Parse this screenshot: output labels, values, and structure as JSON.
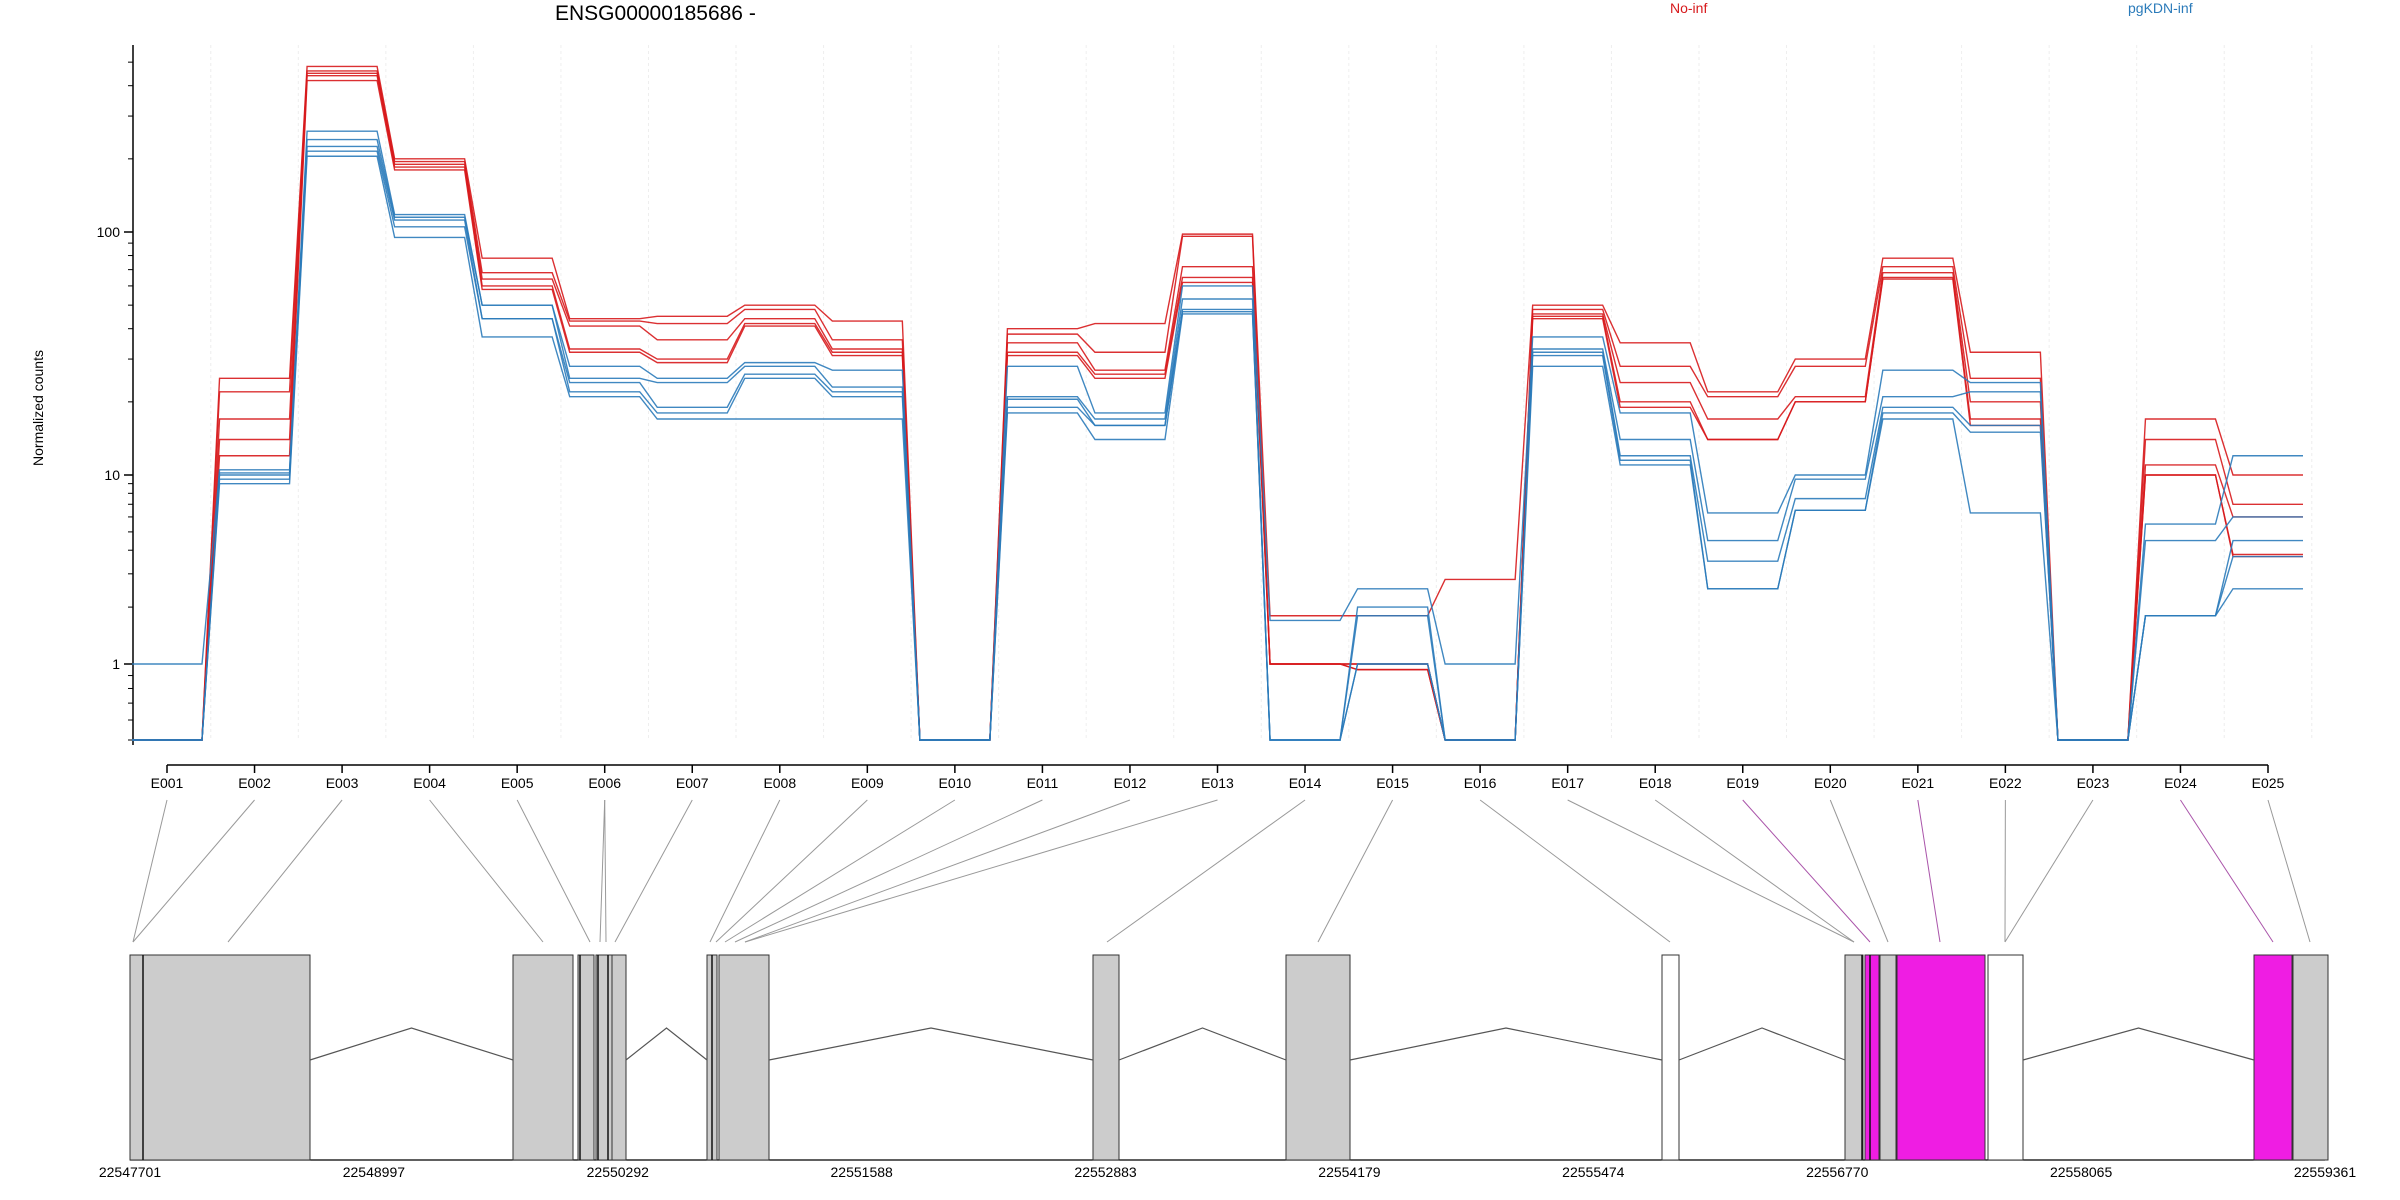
{
  "chart_data": {
    "type": "line",
    "title": "ENSG00000185686 -",
    "ylabel": "Normalized counts",
    "yscale": "log",
    "yticks": [
      "1",
      "10",
      "100"
    ],
    "legend": [
      {
        "name": "No-inf",
        "color": "#d7191c"
      },
      {
        "name": "pgKDN-inf",
        "color": "#2b7bba"
      }
    ],
    "categories": [
      "E001",
      "E002",
      "E003",
      "E004",
      "E005",
      "E006",
      "E007",
      "E008",
      "E009",
      "E010",
      "E011",
      "E012",
      "E013",
      "E014",
      "E015",
      "E016",
      "E017",
      "E018",
      "E019",
      "E020",
      "E021",
      "E022",
      "E023",
      "E024",
      "E025"
    ],
    "series": [
      {
        "group": "No-inf",
        "values": [
          0.5,
          25,
          480,
          200,
          78,
          44,
          45,
          50,
          43,
          0.5,
          40,
          42,
          98,
          1.8,
          1.8,
          2.8,
          50,
          35,
          22,
          30,
          78,
          32,
          0.5,
          17,
          10
        ]
      },
      {
        "group": "No-inf",
        "values": [
          0.5,
          22,
          460,
          195,
          68,
          43,
          42,
          48,
          36,
          0.5,
          38,
          32,
          96,
          1.0,
          1.0,
          0.5,
          48,
          28,
          21,
          28,
          72,
          25,
          0.5,
          14,
          7
        ]
      },
      {
        "group": "No-inf",
        "values": [
          0.5,
          17,
          450,
          190,
          64,
          41,
          36,
          44,
          33,
          0.5,
          35,
          27,
          72,
          1.0,
          1.0,
          0.5,
          46,
          24,
          17,
          21,
          68,
          20,
          0.5,
          11,
          6
        ]
      },
      {
        "group": "No-inf",
        "values": [
          0.5,
          14,
          440,
          185,
          60,
          33,
          30,
          42,
          32,
          0.5,
          32,
          26,
          65,
          1.0,
          0.95,
          0.5,
          45,
          20,
          14,
          20,
          65,
          17,
          0.5,
          10,
          3.8
        ]
      },
      {
        "group": "No-inf",
        "values": [
          0.5,
          12,
          420,
          180,
          58,
          32,
          29,
          41,
          31,
          0.5,
          31,
          25,
          62,
          1.0,
          0.95,
          0.5,
          44,
          19,
          14,
          20,
          64,
          16,
          0.5,
          10,
          3.7
        ]
      },
      {
        "group": "pgKDN-inf",
        "values": [
          1.0,
          10.5,
          260,
          118,
          50,
          28,
          25,
          29,
          27,
          0.5,
          28,
          18,
          60,
          1.7,
          2.5,
          1.0,
          37,
          18,
          6.3,
          10,
          27,
          24,
          0.5,
          5.5,
          12
        ]
      },
      {
        "group": "pgKDN-inf",
        "values": [
          0.5,
          10.2,
          240,
          115,
          50,
          25,
          24,
          28,
          23,
          0.5,
          21,
          17,
          53,
          0.5,
          2.0,
          0.5,
          33,
          14,
          4.5,
          9.5,
          21,
          22,
          0.5,
          4.5,
          6
        ]
      },
      {
        "group": "pgKDN-inf",
        "values": [
          0.5,
          10.0,
          225,
          112,
          44,
          24,
          19,
          26,
          22,
          0.5,
          20.5,
          16,
          48,
          0.5,
          1.8,
          0.5,
          32,
          12,
          3.5,
          7.5,
          19,
          16,
          0.5,
          1.8,
          4.5
        ]
      },
      {
        "group": "pgKDN-inf",
        "values": [
          0.5,
          9.5,
          215,
          105,
          44,
          22,
          18,
          25,
          21,
          0.5,
          19,
          16,
          47,
          0.5,
          1.0,
          0.5,
          31,
          11.5,
          2.5,
          6.5,
          18,
          15,
          0.5,
          1.8,
          3.7
        ]
      },
      {
        "group": "pgKDN-inf",
        "values": [
          0.5,
          9.0,
          205,
          95,
          37,
          21,
          17,
          17,
          17,
          0.5,
          18,
          14,
          46,
          0.5,
          1.0,
          0.5,
          28,
          11,
          2.5,
          6.5,
          17,
          6.3,
          0.5,
          1.8,
          2.5
        ]
      }
    ]
  },
  "gene_model": {
    "coordinate_labels": [
      "22547701",
      "22548997",
      "22550292",
      "22551588",
      "22552883",
      "22554179",
      "22555474",
      "22556770",
      "22558065",
      "22559361"
    ],
    "highlight_color": "#ef1de3",
    "exon_color": "#cccccc"
  }
}
